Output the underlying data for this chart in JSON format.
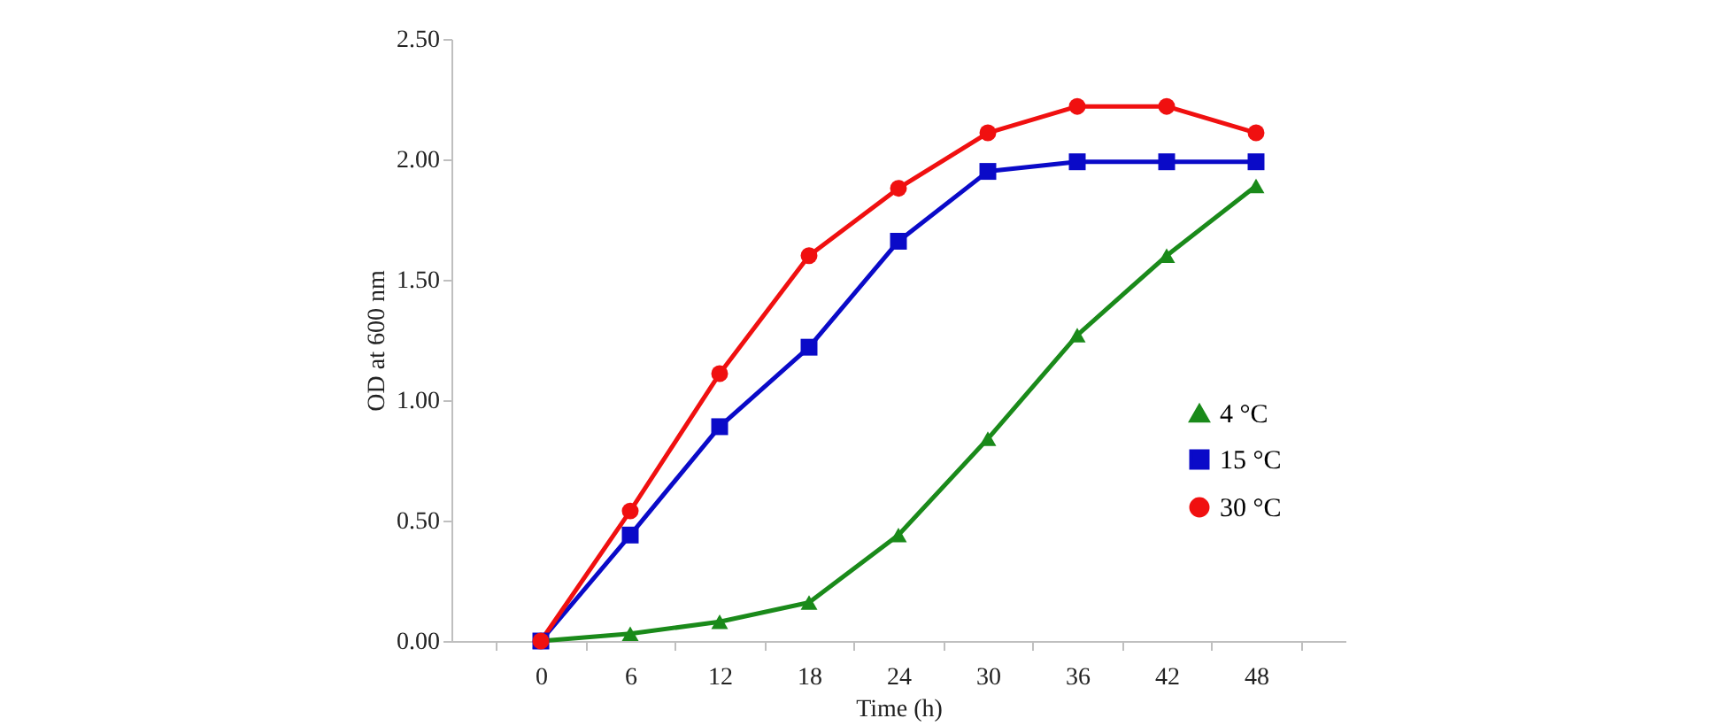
{
  "chart_data": {
    "type": "line",
    "xlabel": "Time (h)",
    "ylabel": "OD at 600 nm",
    "categories": [
      "0",
      "6",
      "12",
      "18",
      "24",
      "30",
      "36",
      "42",
      "48"
    ],
    "ylim": [
      0,
      2.5
    ],
    "yticks": [
      {
        "value": 0,
        "label": "0.00"
      },
      {
        "value": 0.5,
        "label": "0.50"
      },
      {
        "value": 1,
        "label": "1.00"
      },
      {
        "value": 1.5,
        "label": "1.50"
      },
      {
        "value": 2,
        "label": "2.00"
      },
      {
        "value": 2.5,
        "label": "2.50"
      }
    ],
    "grid": false,
    "legend": "right",
    "series": [
      {
        "name": "4 °C",
        "color": "#1a8a1a",
        "marker": "triangle",
        "values": [
          0,
          0.03,
          0.08,
          0.16,
          0.44,
          0.84,
          1.27,
          1.6,
          1.89
        ]
      },
      {
        "name": "15 °C",
        "color": "#0a0ac8",
        "marker": "square",
        "values": [
          0,
          0.44,
          0.89,
          1.22,
          1.66,
          1.95,
          1.99,
          1.99,
          1.99
        ]
      },
      {
        "name": "30 °C",
        "color": "#f01010",
        "marker": "circle",
        "values": [
          0,
          0.54,
          1.11,
          1.6,
          1.88,
          2.11,
          2.22,
          2.22,
          2.11
        ]
      }
    ]
  }
}
